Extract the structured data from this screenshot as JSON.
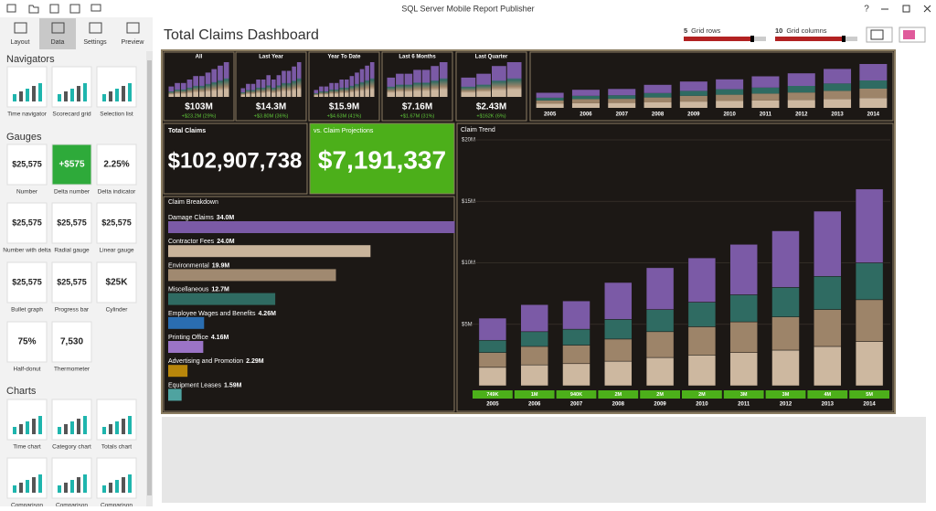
{
  "app": {
    "title": "SQL Server Mobile Report Publisher",
    "help": "?"
  },
  "tabs": [
    "Layout",
    "Data",
    "Settings",
    "Preview"
  ],
  "active_tab": "Data",
  "sidebar": [
    {
      "heading": "Navigators",
      "items": [
        {
          "label": "Time navigator"
        },
        {
          "label": "Scorecard grid"
        },
        {
          "label": "Selection list"
        }
      ]
    },
    {
      "heading": "Gauges",
      "items": [
        {
          "label": "Number",
          "preview": "$25,575"
        },
        {
          "label": "Delta number",
          "preview": "+$575",
          "color": "#2eaa3a"
        },
        {
          "label": "Delta indicator",
          "preview": "2.25%"
        },
        {
          "label": "Number with delta",
          "preview": "$25,575"
        },
        {
          "label": "Radial gauge",
          "preview": "$25,575"
        },
        {
          "label": "Linear gauge",
          "preview": "$25,575"
        },
        {
          "label": "Bullet graph",
          "preview": "$25,575"
        },
        {
          "label": "Progress bar",
          "preview": "$25,575"
        },
        {
          "label": "Cylinder",
          "preview": "$25K"
        },
        {
          "label": "Half-donut",
          "preview": "75%"
        },
        {
          "label": "Thermometer",
          "preview": "7,530"
        }
      ]
    },
    {
      "heading": "Charts",
      "items": [
        {
          "label": "Time chart"
        },
        {
          "label": "Category chart"
        },
        {
          "label": "Totals chart"
        },
        {
          "label": "Comparison"
        },
        {
          "label": "Comparison"
        },
        {
          "label": "Comparison"
        }
      ]
    }
  ],
  "dashboard": {
    "title": "Total Claims Dashboard",
    "grid_rows": {
      "value": 5,
      "label": "Grid rows"
    },
    "grid_columns": {
      "value": 10,
      "label": "Grid columns"
    },
    "tiles": [
      {
        "title": "All",
        "value": "$103M",
        "delta": "+$23.2M (29%)",
        "spark": [
          3,
          4,
          4,
          5,
          6,
          6,
          7,
          8,
          9,
          10
        ]
      },
      {
        "title": "Last Year",
        "value": "$14.3M",
        "delta": "+$3.80M (36%)",
        "spark": [
          2,
          3,
          3,
          4,
          4,
          5,
          4,
          5,
          6,
          6,
          7,
          8
        ]
      },
      {
        "title": "Year To Date",
        "value": "$15.9M",
        "delta": "+$4.63M (41%)",
        "spark": [
          2,
          3,
          3,
          4,
          4,
          5,
          5,
          6,
          7,
          8,
          9,
          10
        ]
      },
      {
        "title": "Last 6 Months",
        "value": "$7.16M",
        "delta": "+$1.67M (31%)",
        "spark": [
          5,
          6,
          6,
          7,
          7,
          8,
          9
        ]
      },
      {
        "title": "Last Quarter",
        "value": "$2.43M",
        "delta": "+$162K (6%)",
        "spark": [
          5,
          6,
          8,
          9
        ]
      }
    ],
    "total_claims": {
      "title": "Total Claims",
      "value": "$102,907,738"
    },
    "projections": {
      "title": "vs. Claim Projections",
      "value": "$7,191,337"
    }
  },
  "chart_data": [
    {
      "type": "hbar",
      "title": "Claim Breakdown",
      "categories": [
        "Damage Claims",
        "Contractor Fees",
        "Environmental",
        "Miscellaneous",
        "Employee Wages and Benefits",
        "Printing Office",
        "Advertising and Promotion",
        "Equipment Leases"
      ],
      "values": [
        34.0,
        24.0,
        19.9,
        12.7,
        4.26,
        4.16,
        2.29,
        1.59
      ],
      "value_labels": [
        "34.0M",
        "24.0M",
        "19.9M",
        "12.7M",
        "4.26M",
        "4.16M",
        "2.29M",
        "1.59M"
      ],
      "colors": [
        "#7b5aa6",
        "#c9b49b",
        "#a08970",
        "#2f6b62",
        "#2a6db0",
        "#9b74c6",
        "#b8860b",
        "#4fa3a0"
      ],
      "xlim": [
        0,
        36
      ]
    },
    {
      "type": "stacked-bar",
      "title": "Claim Trend",
      "x": [
        "2005",
        "2006",
        "2007",
        "2008",
        "2009",
        "2010",
        "2011",
        "2012",
        "2013",
        "2014"
      ],
      "series": [
        {
          "color": "#cdb8a0",
          "values": [
            1.5,
            1.7,
            1.8,
            2.0,
            2.3,
            2.5,
            2.7,
            2.9,
            3.2,
            3.6
          ]
        },
        {
          "color": "#9d8469",
          "values": [
            1.2,
            1.5,
            1.5,
            1.8,
            2.1,
            2.3,
            2.5,
            2.7,
            3.0,
            3.4
          ]
        },
        {
          "color": "#2f6b62",
          "values": [
            1.0,
            1.2,
            1.3,
            1.6,
            1.8,
            2.0,
            2.2,
            2.4,
            2.7,
            3.0
          ]
        },
        {
          "color": "#7b5aa6",
          "values": [
            1.8,
            2.2,
            2.3,
            3.0,
            3.4,
            3.6,
            4.1,
            4.6,
            5.3,
            6.0
          ]
        }
      ],
      "footer_labels": [
        "749K",
        "1M",
        "940K",
        "2M",
        "2M",
        "2M",
        "3M",
        "3M",
        "4M",
        "5M"
      ],
      "footer_color": "#4caf1a",
      "ylim": [
        0,
        20
      ],
      "yticks": [
        {
          "value": 5,
          "label": "$5M"
        },
        {
          "value": 10,
          "label": "$10M"
        },
        {
          "value": 15,
          "label": "$15M"
        },
        {
          "value": 20,
          "label": "$20M"
        }
      ],
      "grid": true
    }
  ]
}
